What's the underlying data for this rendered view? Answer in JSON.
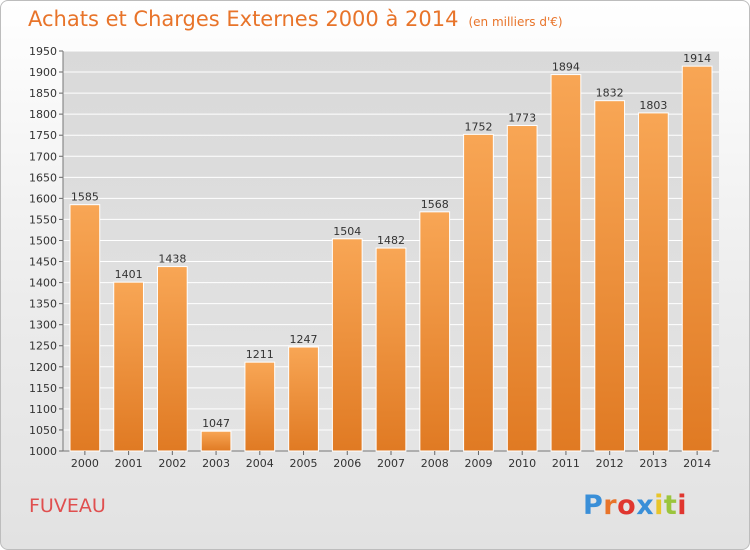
{
  "header": {
    "title": "Achats et Charges Externes 2000 à 2014",
    "subtitle": "(en milliers d'€)"
  },
  "footer": {
    "commune": "FUVEAU",
    "logo_text": "Proxiti",
    "logo_colors": [
      "#3a8fd8",
      "#e8742a",
      "#e0362f",
      "#3a8fd8",
      "#e8c52a",
      "#9bc53d",
      "#e0362f"
    ]
  },
  "colors": {
    "title": "#e8742a",
    "commune": "#e04f4f",
    "bar_top": "#f8a655",
    "bar_bottom": "#e07a23"
  },
  "chart_data": {
    "type": "bar",
    "categories": [
      "2000",
      "2001",
      "2002",
      "2003",
      "2004",
      "2005",
      "2006",
      "2007",
      "2008",
      "2009",
      "2010",
      "2011",
      "2012",
      "2013",
      "2014"
    ],
    "values": [
      1585,
      1401,
      1438,
      1047,
      1211,
      1247,
      1504,
      1482,
      1568,
      1752,
      1773,
      1894,
      1832,
      1803,
      1914
    ],
    "ylim": [
      1000,
      1950
    ],
    "yticks": [
      1000,
      1050,
      1100,
      1150,
      1200,
      1250,
      1300,
      1350,
      1400,
      1450,
      1500,
      1550,
      1600,
      1650,
      1700,
      1750,
      1800,
      1850,
      1900,
      1950
    ],
    "grid": true,
    "legend": "none"
  }
}
